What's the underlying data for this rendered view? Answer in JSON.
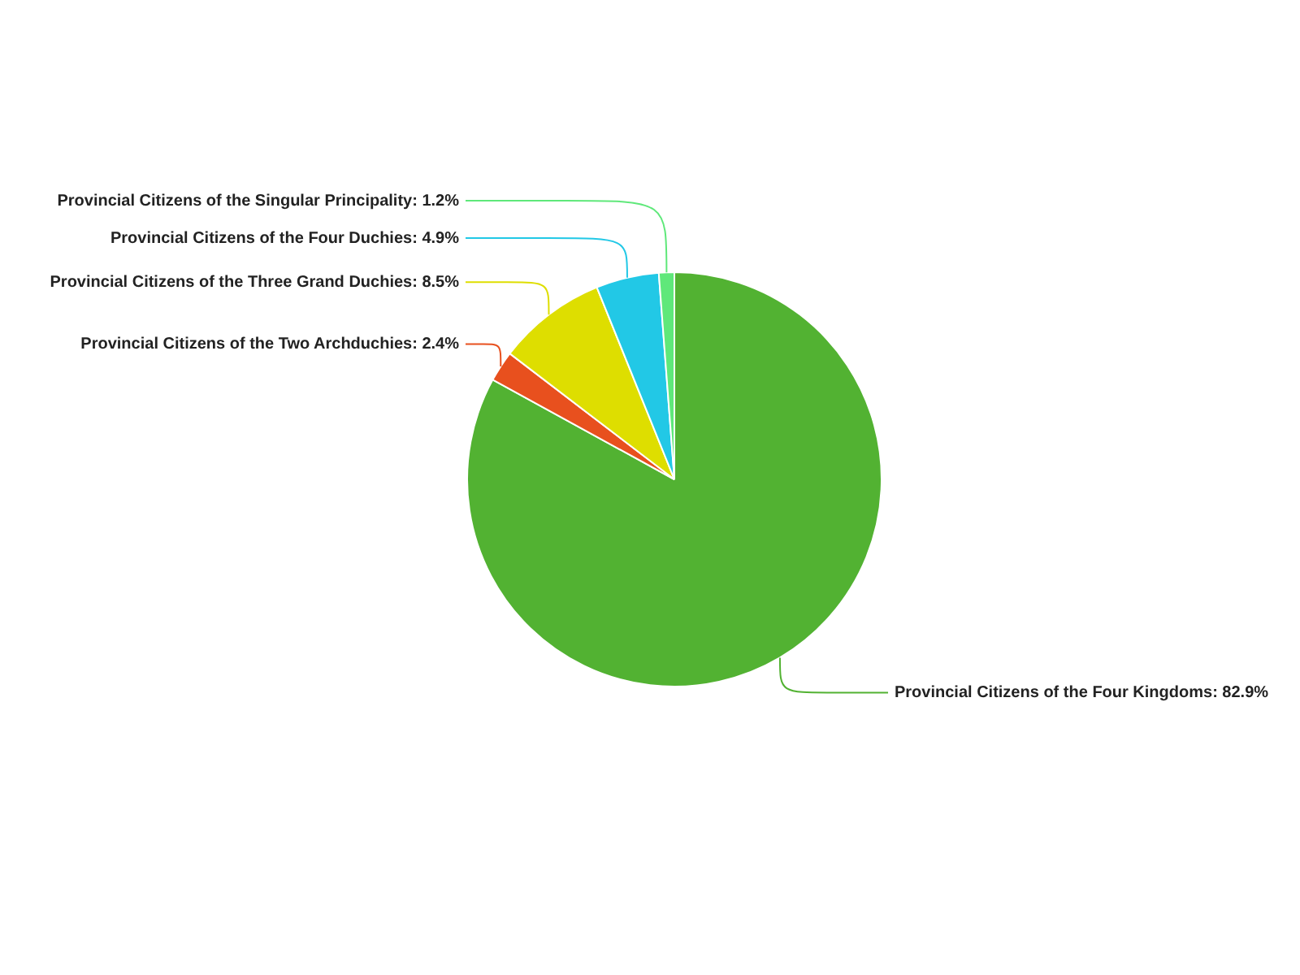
{
  "chart_data": {
    "type": "pie",
    "categories": [
      "Provincial Citizens of the Four Kingdoms",
      "Provincial Citizens of the Two Archduchies",
      "Provincial Citizens of the Three Grand Duchies",
      "Provincial Citizens of the Four Duchies",
      "Provincial Citizens of the Singular Principality"
    ],
    "values": [
      82.9,
      2.4,
      8.5,
      4.9,
      1.2
    ],
    "value_labels": [
      "82.9%",
      "2.4%",
      "8.5%",
      "4.9%",
      "1.2%"
    ],
    "colors": [
      "#52b232",
      "#e8501e",
      "#dede00",
      "#22c8e6",
      "#5fe87a"
    ],
    "legend": false
  }
}
